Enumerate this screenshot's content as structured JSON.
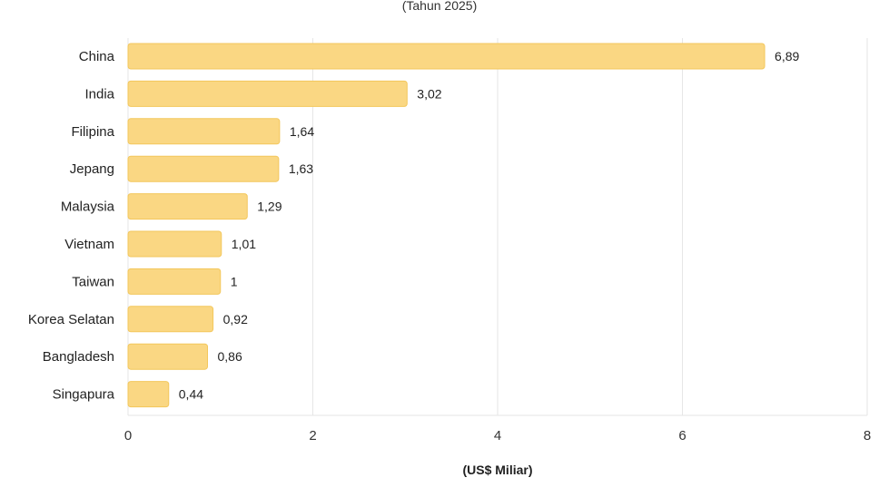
{
  "chart_data": {
    "type": "bar",
    "orientation": "horizontal",
    "subtitle": "(Tahun 2025)",
    "xlabel": "(US$ Miliar)",
    "ylabel": "",
    "categories": [
      "China",
      "India",
      "Filipina",
      "Jepang",
      "Malaysia",
      "Vietnam",
      "Taiwan",
      "Korea Selatan",
      "Bangladesh",
      "Singapura"
    ],
    "values": [
      6.89,
      3.02,
      1.64,
      1.63,
      1.29,
      1.01,
      1,
      0.92,
      0.86,
      0.44
    ],
    "value_labels": [
      "6,89",
      "3,02",
      "1,64",
      "1,63",
      "1,29",
      "1,01",
      "1",
      "0,92",
      "0,86",
      "0,44"
    ],
    "xlim": [
      0,
      8
    ],
    "xticks": [
      0,
      2,
      4,
      6,
      8
    ],
    "xtick_labels": [
      "0",
      "2",
      "4",
      "6",
      "8"
    ],
    "grid": "vertical",
    "legend": "none",
    "colors": {
      "bar_fill": "#fad783",
      "bar_stroke": "#f3c75c",
      "grid": "#e6e6e6",
      "text": "#222222"
    }
  }
}
